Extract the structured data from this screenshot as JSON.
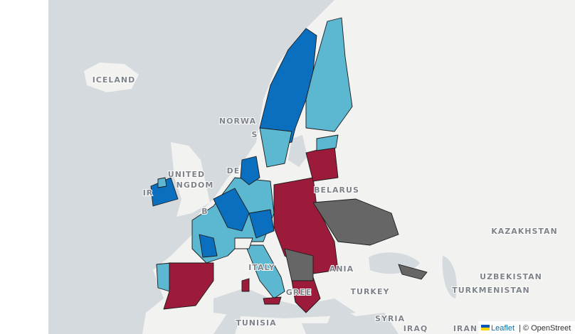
{
  "map": {
    "labels": [
      "ICELAND",
      "NORWA",
      "S",
      "UNITED",
      "NGDOM",
      "IR",
      "DE",
      "B",
      "BELARUS",
      "KAZAKHSTAN",
      "UZBEKISTAN",
      "TURKMENISTAN",
      "TURKEY",
      "TUNISIA",
      "SYRIA",
      "IRAQ",
      "IRAN",
      "ITALY",
      "GREE",
      "ANIA"
    ],
    "attribution": {
      "link": "Leaflet",
      "text": "| © OpenStreet"
    }
  }
}
